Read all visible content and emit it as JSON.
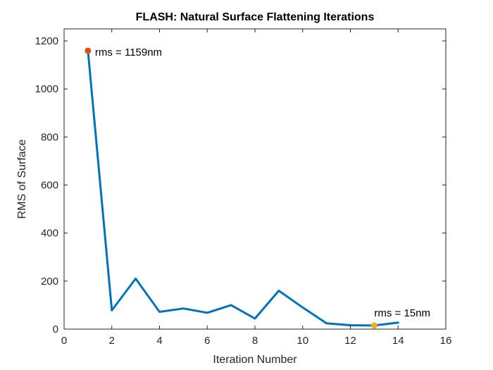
{
  "chart_data": {
    "type": "line",
    "title": "FLASH: Natural Surface Flattening Iterations",
    "xlabel": "Iteration Number",
    "ylabel": "RMS of Surface",
    "xlim": [
      0,
      16
    ],
    "ylim": [
      0,
      1250
    ],
    "xticks": [
      0,
      2,
      4,
      6,
      8,
      10,
      12,
      14,
      16
    ],
    "yticks": [
      0,
      200,
      400,
      600,
      800,
      1000,
      1200
    ],
    "grid": false,
    "series": [
      {
        "x": [
          1,
          2,
          3,
          4,
          5,
          6,
          7,
          8,
          9,
          10,
          11,
          12,
          13,
          14
        ],
        "values": [
          1159,
          78,
          210,
          72,
          86,
          68,
          100,
          44,
          160,
          90,
          24,
          16,
          15,
          27
        ],
        "color": "#0072BD"
      }
    ],
    "annotations": [
      {
        "x": 1,
        "y": 1159,
        "text": "rms = 1159nm",
        "color": "#D95319"
      },
      {
        "x": 13,
        "y": 15,
        "text": "rms = 15nm",
        "color": "#EDB120"
      }
    ]
  }
}
